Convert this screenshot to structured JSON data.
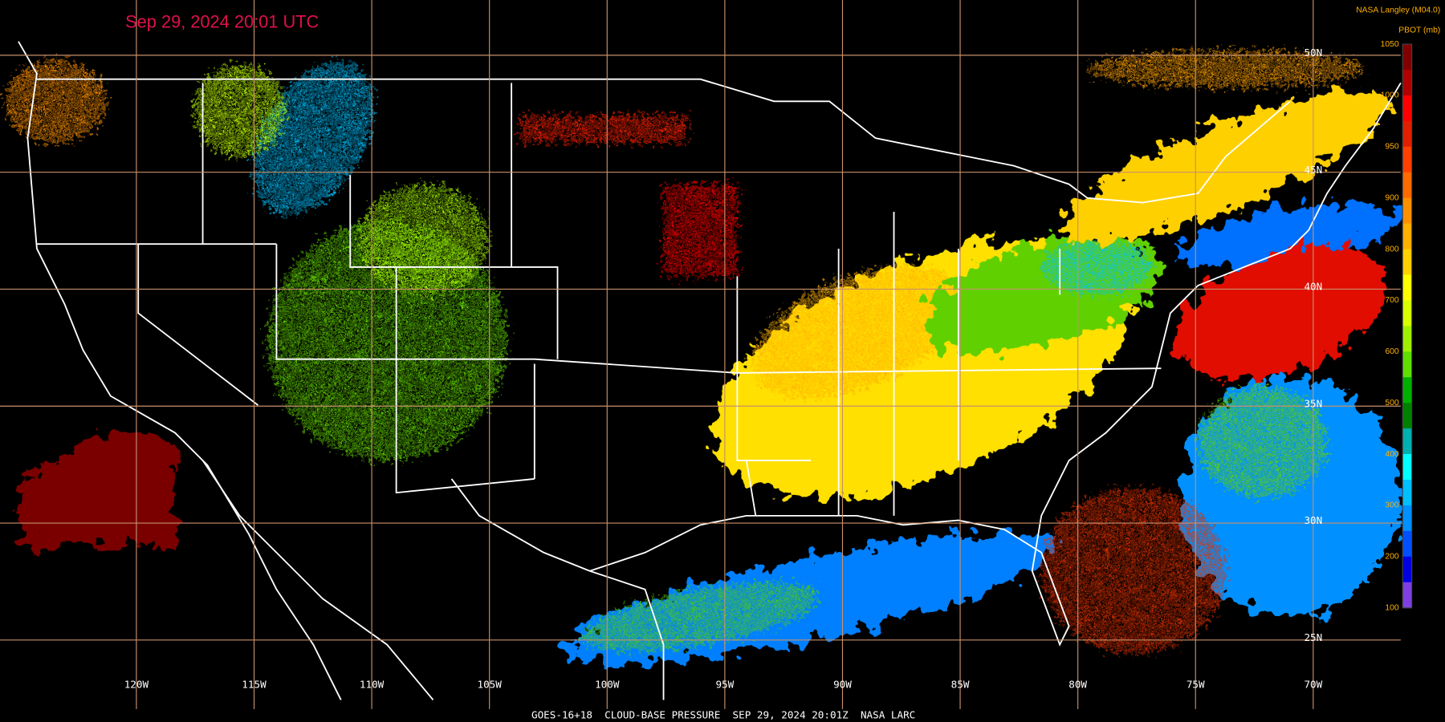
{
  "header": {
    "timestamp": "Sep 29, 2024 20:01 UTC",
    "source": "NASA Langley (M04.0)"
  },
  "colorbar": {
    "title": "PBOT (mb)",
    "ticks": [
      1050,
      1000,
      950,
      900,
      800,
      700,
      600,
      500,
      400,
      300,
      200,
      100
    ],
    "colors": [
      "#800000",
      "#b00000",
      "#ff0000",
      "#e02000",
      "#ff4000",
      "#ff6a00",
      "#ff9000",
      "#ffb000",
      "#ffd000",
      "#ffff00",
      "#d8ff00",
      "#a0f000",
      "#60e000",
      "#00b000",
      "#008000",
      "#00b0b0",
      "#00ffff",
      "#00c0ff",
      "#0090ff",
      "#0050ff",
      "#0000e0",
      "#8040e0"
    ]
  },
  "longitude_labels": [
    {
      "value": -120,
      "label": "120W"
    },
    {
      "value": -115,
      "label": "115W"
    },
    {
      "value": -110,
      "label": "110W"
    },
    {
      "value": -105,
      "label": "105W"
    },
    {
      "value": -100,
      "label": "100W"
    },
    {
      "value": -95,
      "label": "95W"
    },
    {
      "value": -90,
      "label": "90W"
    },
    {
      "value": -85,
      "label": "85W"
    },
    {
      "value": -80,
      "label": "80W"
    },
    {
      "value": -75,
      "label": "75W"
    },
    {
      "value": -70,
      "label": "70W"
    }
  ],
  "latitude_labels": [
    {
      "value": 50,
      "label": "50N"
    },
    {
      "value": 45,
      "label": "45N"
    },
    {
      "value": 40,
      "label": "40N"
    },
    {
      "value": 35,
      "label": "35N"
    },
    {
      "value": 30,
      "label": "30N"
    },
    {
      "value": 25,
      "label": "25N"
    }
  ],
  "footer": "GOES-16+18  CLOUD-BASE PRESSURE  SEP 29, 2024 20:01Z  NASA LARC"
}
